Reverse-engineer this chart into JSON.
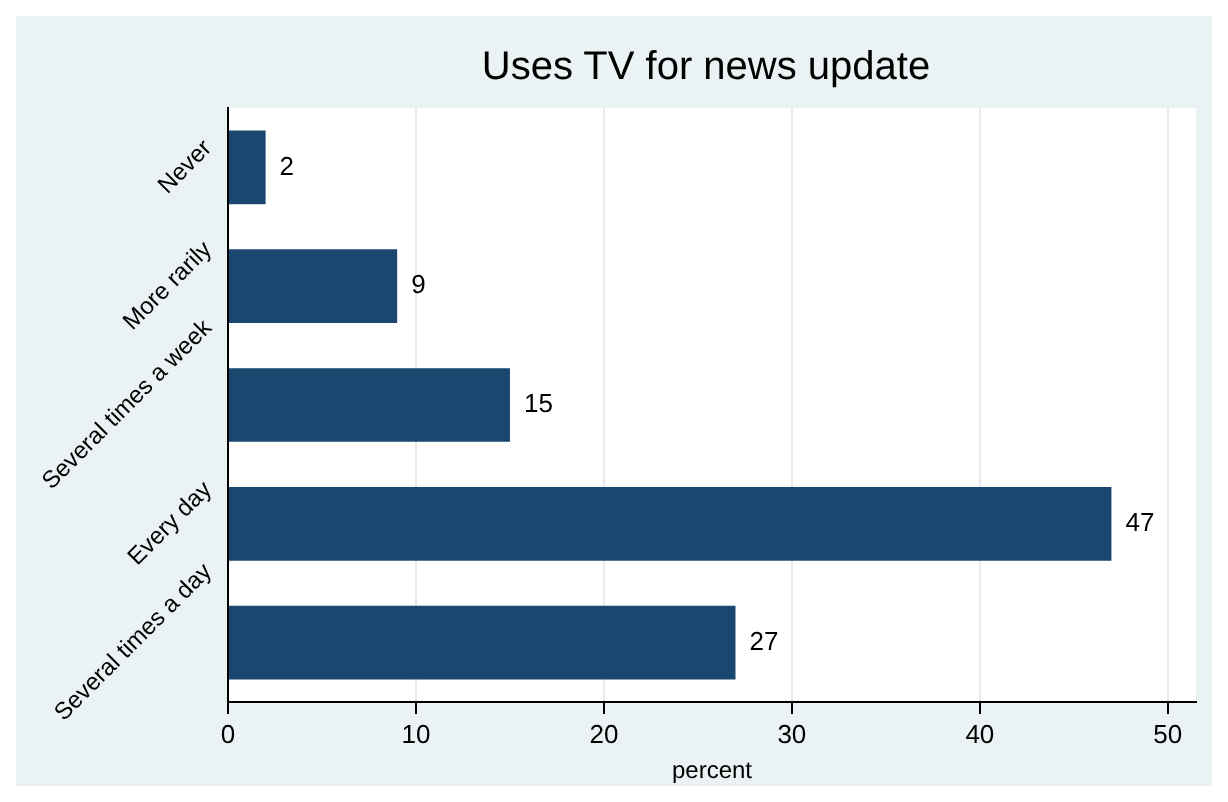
{
  "chart_data": {
    "type": "bar",
    "orientation": "horizontal",
    "title": "Uses TV for news update",
    "xlabel": "percent",
    "categories": [
      "Never",
      "More rarily",
      "Several times a week",
      "Every day",
      "Several times a day"
    ],
    "values": [
      2,
      9,
      15,
      47,
      27
    ],
    "color": "#1a476f",
    "data_labels": true,
    "xlim": [
      0,
      51.5
    ],
    "xticks": [
      0,
      10,
      20,
      30,
      40,
      50
    ],
    "grid": "x",
    "legend": false
  }
}
